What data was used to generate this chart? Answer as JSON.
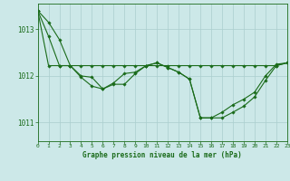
{
  "title": "Graphe pression niveau de la mer (hPa)",
  "background_color": "#cce8e8",
  "grid_color": "#aacece",
  "line_color": "#1a6b1a",
  "xlim": [
    0,
    23
  ],
  "ylim": [
    1010.6,
    1013.55
  ],
  "yticks": [
    1011,
    1012,
    1013
  ],
  "xticks": [
    0,
    1,
    2,
    3,
    4,
    5,
    6,
    7,
    8,
    9,
    10,
    11,
    12,
    13,
    14,
    15,
    16,
    17,
    18,
    19,
    20,
    21,
    22,
    23
  ],
  "series": [
    [
      1013.4,
      1013.15,
      1012.78,
      1012.22,
      1012.0,
      1011.97,
      1011.72,
      1011.82,
      1011.82,
      1012.05,
      1012.22,
      1012.28,
      1012.18,
      1012.08,
      1011.93,
      1011.1,
      1011.1,
      1011.1,
      1011.22,
      1011.35,
      1011.55,
      1011.9,
      1012.22,
      1012.28
    ],
    [
      1013.4,
      1012.22,
      1012.22,
      1012.22,
      1012.22,
      1012.22,
      1012.22,
      1012.22,
      1012.22,
      1012.22,
      1012.22,
      1012.22,
      1012.22,
      1012.22,
      1012.22,
      1012.22,
      1012.22,
      1012.22,
      1012.22,
      1012.22,
      1012.22,
      1012.22,
      1012.22,
      1012.28
    ],
    [
      1013.4,
      1012.85,
      1012.22,
      1012.22,
      1011.97,
      1011.78,
      1011.72,
      1011.85,
      1012.05,
      1012.08,
      1012.22,
      1012.28,
      1012.18,
      1012.08,
      1011.93,
      1011.1,
      1011.1,
      1011.22,
      1011.38,
      1011.5,
      1011.65,
      1012.0,
      1012.25,
      1012.28
    ]
  ]
}
